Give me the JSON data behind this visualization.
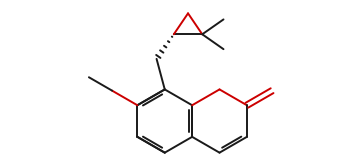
{
  "bond_color": "#1a1a1a",
  "oxygen_color": "#cc0000",
  "background": "#ffffff",
  "lw": 1.4,
  "figsize": [
    3.61,
    1.66
  ],
  "dpi": 100,
  "bl": 0.55
}
